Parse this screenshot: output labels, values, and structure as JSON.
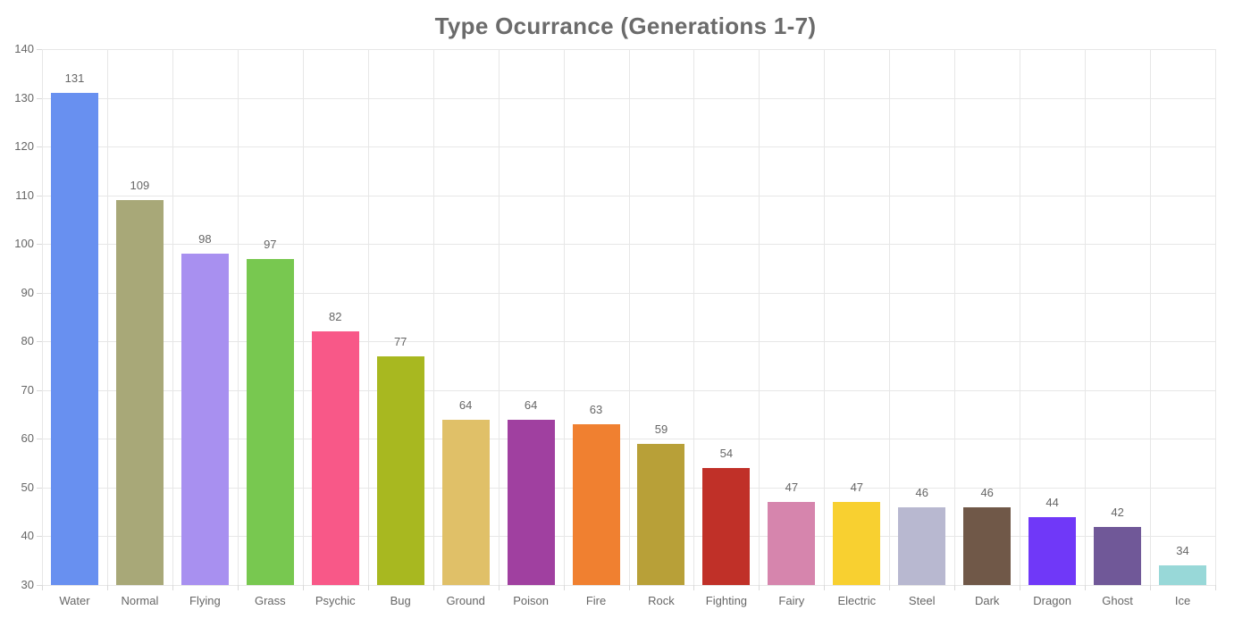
{
  "title": "Type Ocurrance (Generations 1-7)",
  "chart_data": {
    "type": "bar",
    "title": "Type Ocurrance (Generations 1-7)",
    "categories": [
      "Water",
      "Normal",
      "Flying",
      "Grass",
      "Psychic",
      "Bug",
      "Ground",
      "Poison",
      "Fire",
      "Rock",
      "Fighting",
      "Fairy",
      "Electric",
      "Steel",
      "Dark",
      "Dragon",
      "Ghost",
      "Ice"
    ],
    "values": [
      131,
      109,
      98,
      97,
      82,
      77,
      64,
      64,
      63,
      59,
      54,
      47,
      47,
      46,
      46,
      44,
      42,
      34
    ],
    "bar_colors": [
      "#6890F0",
      "#A8A878",
      "#A890F0",
      "#78C850",
      "#F85888",
      "#A8B820",
      "#E0C068",
      "#A040A0",
      "#F08030",
      "#B8A038",
      "#C03028",
      "#D685AD",
      "#F8D030",
      "#B8B8D0",
      "#705848",
      "#7038F8",
      "#705898",
      "#98D8D8"
    ],
    "xlabel": "",
    "ylabel": "",
    "ylim": [
      30,
      140
    ],
    "yticks": [
      30,
      40,
      50,
      60,
      70,
      80,
      90,
      100,
      110,
      120,
      130,
      140
    ],
    "grid": true,
    "legend": "none",
    "value_labels_shown": true,
    "colors": {
      "title": "#6b6b6b",
      "tick_label": "#666666",
      "value_label": "#666666",
      "gridline": "#e7e7e7",
      "tick_mark": "#d9d9d9",
      "background": "#ffffff"
    }
  }
}
